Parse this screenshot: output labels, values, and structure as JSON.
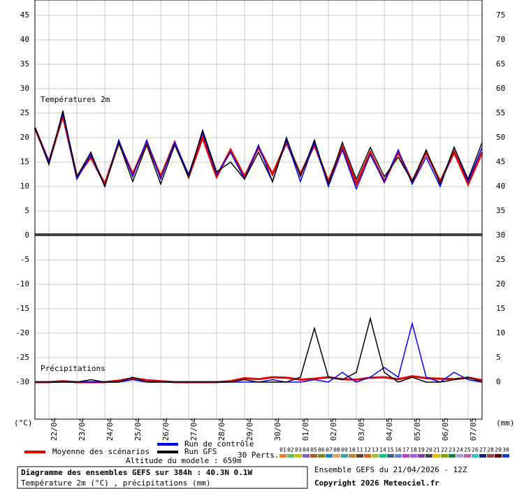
{
  "chart_data": [
    {
      "type": "line",
      "label": "Températures 2m",
      "y_label": "(°C)",
      "x": [
        0,
        12,
        24,
        36,
        48,
        60,
        72,
        84,
        96,
        108,
        120,
        132,
        144,
        156,
        168,
        180,
        192,
        204,
        216,
        228,
        240,
        252,
        264,
        276,
        288,
        300,
        312,
        324,
        336,
        348,
        360,
        372,
        384
      ],
      "xlim": [
        0,
        384
      ],
      "ylim": [
        0,
        48
      ],
      "yticks": [
        0,
        5,
        10,
        15,
        20,
        25,
        30,
        35,
        40,
        45
      ],
      "y2lim": [
        30,
        78
      ],
      "y2ticks": [
        30,
        35,
        40,
        45,
        50,
        55,
        60,
        65,
        70,
        75
      ],
      "grid": true,
      "series": [
        {
          "name": "Moyenne des scénarios",
          "color": "#e00000",
          "values": [
            22,
            15,
            24.5,
            12,
            16,
            10.5,
            19,
            12.5,
            19,
            12,
            19,
            12,
            20,
            12,
            17.5,
            12,
            18,
            12.5,
            19,
            12.5,
            18.5,
            11,
            18,
            10.5,
            17,
            11,
            17,
            11,
            17,
            11,
            17,
            10.5,
            17
          ]
        },
        {
          "name": "Run de contrôle",
          "color": "#0000ff",
          "values": [
            22,
            15,
            25,
            11.5,
            16.5,
            10,
            19.5,
            12,
            19.5,
            11.5,
            19,
            12.5,
            21,
            12.5,
            17,
            11.5,
            18.5,
            11,
            19.5,
            11,
            19,
            10,
            17.5,
            9.5,
            16.5,
            11,
            17.5,
            10.5,
            16,
            10,
            18,
            11,
            18
          ]
        },
        {
          "name": "Run GFS",
          "color": "#000000",
          "values": [
            22,
            14.5,
            25.5,
            12,
            17,
            10,
            19,
            11,
            18.5,
            10.5,
            18.5,
            12,
            21.5,
            13,
            15,
            11.5,
            17,
            11,
            20,
            12,
            19.5,
            10.5,
            19,
            11.5,
            18,
            12,
            16,
            11,
            17.5,
            10.5,
            18,
            11.5,
            19
          ]
        }
      ]
    },
    {
      "type": "line",
      "label": "Précipitations",
      "y_label": "(mm)",
      "x": [
        0,
        12,
        24,
        36,
        48,
        60,
        72,
        84,
        96,
        108,
        120,
        132,
        144,
        156,
        168,
        180,
        192,
        204,
        216,
        228,
        240,
        252,
        264,
        276,
        288,
        300,
        312,
        324,
        336,
        348,
        360,
        372,
        384
      ],
      "xlim": [
        0,
        384
      ],
      "ylim": [
        -37.5,
        0
      ],
      "yticks": [
        -5,
        -10,
        -15,
        -20,
        -25,
        -30
      ],
      "y2lim": [
        -7.5,
        30
      ],
      "y2ticks": [
        0,
        5,
        10,
        15,
        20,
        25
      ],
      "grid": true,
      "xticks": [
        {
          "value": 12,
          "label": "22/04"
        },
        {
          "value": 36,
          "label": "23/04"
        },
        {
          "value": 60,
          "label": "24/04"
        },
        {
          "value": 84,
          "label": "25/04"
        },
        {
          "value": 108,
          "label": "26/04"
        },
        {
          "value": 132,
          "label": "27/04"
        },
        {
          "value": 156,
          "label": "28/04"
        },
        {
          "value": 180,
          "label": "29/04"
        },
        {
          "value": 204,
          "label": "30/04"
        },
        {
          "value": 228,
          "label": "01/05"
        },
        {
          "value": 252,
          "label": "02/05"
        },
        {
          "value": 276,
          "label": "03/05"
        },
        {
          "value": 300,
          "label": "04/05"
        },
        {
          "value": 324,
          "label": "05/05"
        },
        {
          "value": 348,
          "label": "06/05"
        },
        {
          "value": 372,
          "label": "07/05"
        }
      ],
      "series": [
        {
          "color": "#e00000",
          "axis": "y2",
          "values": [
            0,
            0,
            0.2,
            0,
            0,
            0,
            0.3,
            0.8,
            0.4,
            0.2,
            0,
            0,
            0,
            0,
            0.2,
            0.8,
            0.6,
            1,
            0.9,
            0.5,
            0.7,
            1,
            0.6,
            0.5,
            0.9,
            1,
            0.6,
            1.2,
            0.8,
            0.7,
            0.6,
            0.9,
            0.4
          ]
        },
        {
          "color": "#0000ff",
          "axis": "y2",
          "values": [
            0,
            0,
            0,
            0,
            0,
            0,
            0,
            0.5,
            0,
            0,
            0,
            0,
            0,
            0,
            0,
            0,
            0,
            0.5,
            0,
            0,
            0.5,
            0,
            2,
            0,
            1,
            3,
            1,
            12,
            1,
            0,
            2,
            0.5,
            0
          ]
        },
        {
          "color": "#000000",
          "axis": "y2",
          "values": [
            0,
            0,
            0,
            0,
            0.5,
            0,
            0,
            1,
            0,
            0,
            0,
            0,
            0,
            0,
            0,
            0.5,
            0,
            0,
            0,
            1,
            11,
            1,
            0.5,
            2,
            13,
            2,
            0,
            1,
            0,
            0,
            0.5,
            1,
            0
          ]
        }
      ]
    }
  ],
  "legend": {
    "perts_label": "30 Perts.",
    "altitude": "Altitude du modele : 659m",
    "perts": [
      {
        "name": "01",
        "color": "#e0803c"
      },
      {
        "name": "02",
        "color": "#60c060"
      },
      {
        "name": "03",
        "color": "#c0c020"
      },
      {
        "name": "04",
        "color": "#8060c0"
      },
      {
        "name": "05",
        "color": "#a06020"
      },
      {
        "name": "06",
        "color": "#808020"
      },
      {
        "name": "07",
        "color": "#2080c0"
      },
      {
        "name": "08",
        "color": "#e0a060"
      },
      {
        "name": "09",
        "color": "#40a0a0"
      },
      {
        "name": "10",
        "color": "#c08040"
      },
      {
        "name": "11",
        "color": "#604020"
      },
      {
        "name": "12",
        "color": "#e06020"
      },
      {
        "name": "13",
        "color": "#a0c040"
      },
      {
        "name": "14",
        "color": "#20c080"
      },
      {
        "name": "15",
        "color": "#406080"
      },
      {
        "name": "16",
        "color": "#6080e0"
      },
      {
        "name": "17",
        "color": "#c040c0"
      },
      {
        "name": "18",
        "color": "#a060e0"
      },
      {
        "name": "19",
        "color": "#8040a0"
      },
      {
        "name": "20",
        "color": "#404040"
      },
      {
        "name": "21",
        "color": "#e0c000"
      },
      {
        "name": "22",
        "color": "#80a020"
      },
      {
        "name": "23",
        "color": "#208040"
      },
      {
        "name": "24",
        "color": "#a0a0e0"
      },
      {
        "name": "25",
        "color": "#c060a0"
      },
      {
        "name": "26",
        "color": "#40c0c0"
      },
      {
        "name": "27",
        "color": "#202080"
      },
      {
        "name": "28",
        "color": "#a04040"
      },
      {
        "name": "29",
        "color": "#600000"
      },
      {
        "name": "30",
        "color": "#2040c0"
      }
    ]
  },
  "footer": {
    "title": "Diagramme des ensembles GEFS sur 384h : 40.3N 0.1W",
    "subtitle": "Température 2m (°C) , précipitations (mm)",
    "run": "Ensemble GEFS du 21/04/2026 - 12Z",
    "copyright": "Copyright 2026 Meteociel.fr"
  }
}
